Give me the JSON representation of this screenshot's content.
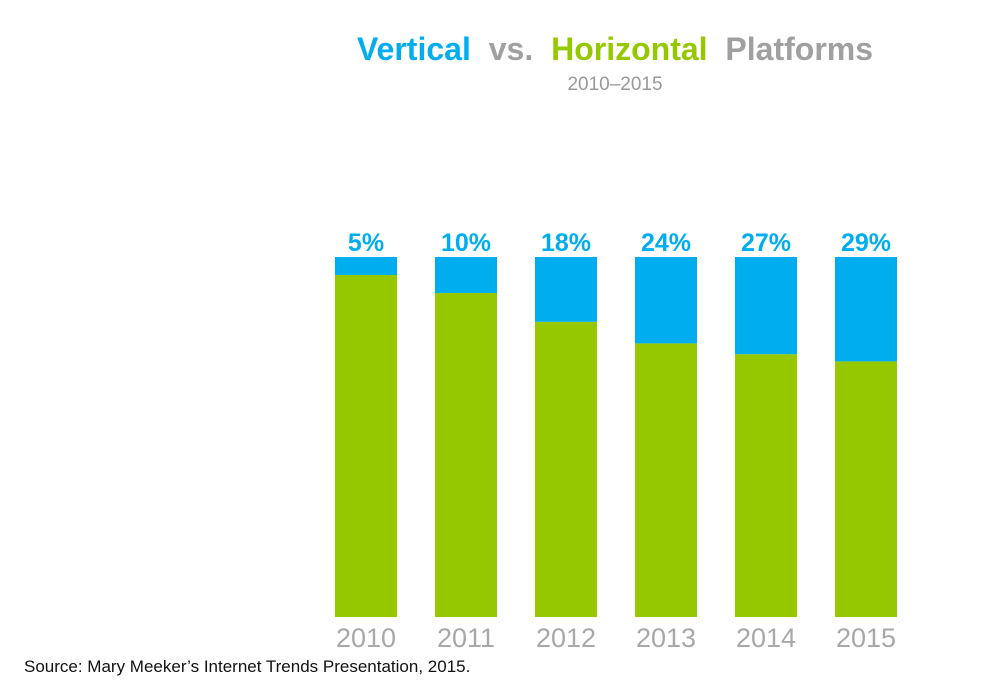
{
  "chart_data": {
    "type": "bar",
    "stacked": true,
    "title_parts": {
      "vertical": "Vertical",
      "vs": "vs.",
      "horizontal": "Horizontal",
      "platforms": "Platforms"
    },
    "subtitle": "2010–2015",
    "categories": [
      "2010",
      "2011",
      "2012",
      "2013",
      "2014",
      "2015"
    ],
    "series": [
      {
        "values": [
          95,
          90,
          82,
          76,
          73,
          71
        ]
      },
      {
        "values": [
          5,
          10,
          18,
          24,
          27,
          29
        ]
      }
    ],
    "data_labels": [
      "5%",
      "10%",
      "18%",
      "24%",
      "27%",
      "29%"
    ],
    "ylim": [
      0,
      100
    ],
    "grid": false,
    "legend": "none"
  },
  "colors": {
    "vertical": "#00adef",
    "horizontal": "#96c800",
    "platforms_text": "#a0a0a0",
    "tick_text": "#a8a8a8",
    "subtitle_text": "#9a9a9a"
  },
  "source": "Source: Mary Meeker’s Internet Trends Presentation, 2015."
}
